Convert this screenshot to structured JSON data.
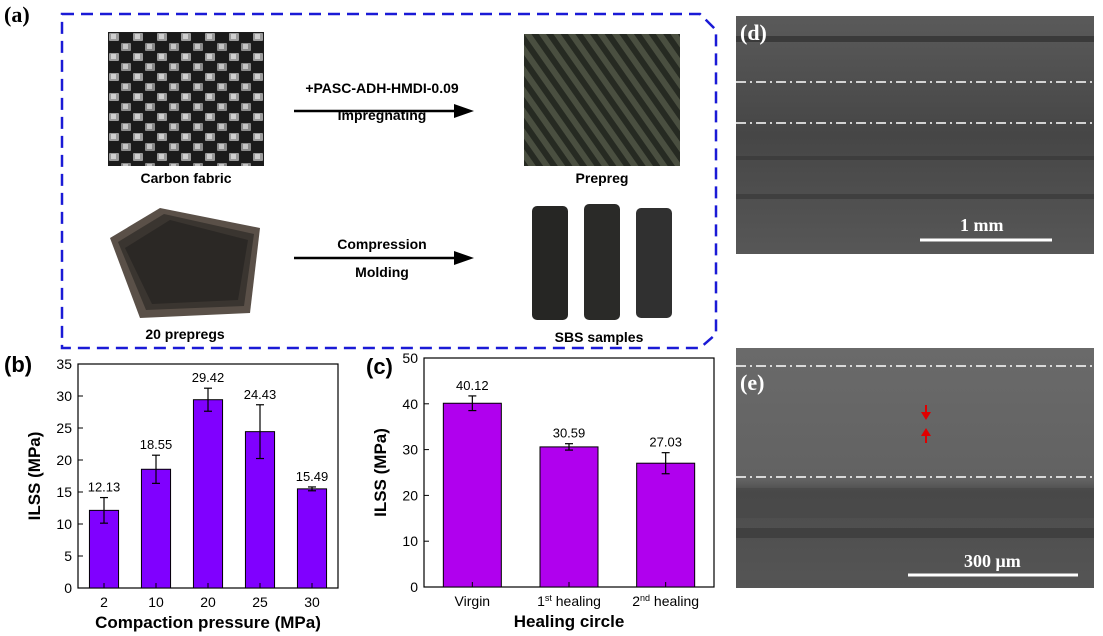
{
  "panel_a": {
    "letter": "(a)",
    "carbon_fabric_caption": "Carbon fabric",
    "prepreg_caption": "Prepreg",
    "prepregs_caption": "20 prepregs",
    "sbs_caption": "SBS samples",
    "arrow1_top": "+PASC-ADH-HMDI-0.09",
    "arrow1_bottom": "Impregnating",
    "arrow2_top": "Compression",
    "arrow2_bottom": "Molding",
    "border_color": "#1a1ad6"
  },
  "panel_d": {
    "letter": "(d)",
    "scale_label": "1 mm"
  },
  "panel_e": {
    "letter": "(e)",
    "scale_label": "300 μm"
  },
  "chart_data": [
    {
      "panel_letter": "(b)",
      "type": "bar",
      "categories": [
        "2",
        "10",
        "20",
        "25",
        "30"
      ],
      "values": [
        12.13,
        18.55,
        29.42,
        24.43,
        15.49
      ],
      "value_labels": [
        "12.13",
        "18.55",
        "29.42",
        "24.43",
        "15.49"
      ],
      "errors": [
        2.0,
        2.2,
        1.8,
        4.2,
        0.3
      ],
      "xlabel": "Compaction pressure (MPa)",
      "ylabel": "ILSS (MPa)",
      "ylim": [
        0,
        35
      ],
      "yticks": [
        0,
        5,
        10,
        15,
        20,
        25,
        30,
        35
      ],
      "bar_color": "#8000ff",
      "grid": false
    },
    {
      "panel_letter": "(c)",
      "type": "bar",
      "categories": [
        {
          "main": "Virgin",
          "sup": "",
          "rest": ""
        },
        {
          "main": "1",
          "sup": "st",
          "rest": " healing"
        },
        {
          "main": "2",
          "sup": "nd",
          "rest": " healing"
        }
      ],
      "values": [
        40.12,
        30.59,
        27.03
      ],
      "value_labels": [
        "40.12",
        "30.59",
        "27.03"
      ],
      "errors": [
        1.6,
        0.7,
        2.3
      ],
      "xlabel": "Healing circle",
      "ylabel": "ILSS (MPa)",
      "ylim": [
        0,
        50
      ],
      "yticks": [
        0,
        10,
        20,
        30,
        40,
        50
      ],
      "bar_color": "#b000ee",
      "grid": false
    }
  ]
}
